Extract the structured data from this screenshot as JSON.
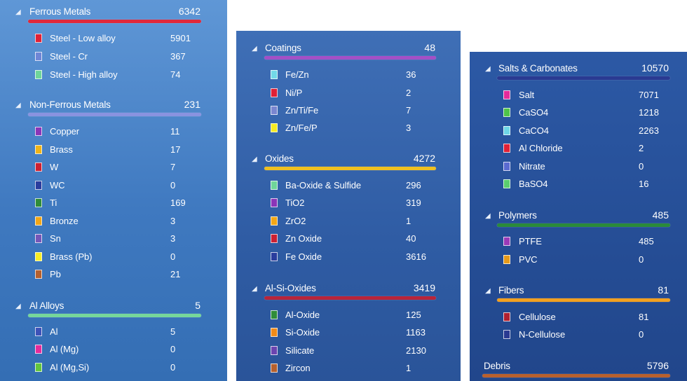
{
  "panels": [
    {
      "groups": [
        {
          "title": "Ferrous Metals",
          "total": "6342",
          "color": "#e0283a",
          "items": [
            {
              "label": "Steel - Low alloy",
              "value": "5901",
              "color": "#e02036"
            },
            {
              "label": "Steel - Cr",
              "value": "367",
              "color": "#6f86d6"
            },
            {
              "label": "Steel - High alloy",
              "value": "74",
              "color": "#6fd59a"
            }
          ]
        },
        {
          "title": "Non-Ferrous Metals",
          "total": "231",
          "color": "#8a93e0",
          "items": [
            {
              "label": "Copper",
              "value": "11",
              "color": "#8a35b8"
            },
            {
              "label": "Brass",
              "value": "17",
              "color": "#f0b418"
            },
            {
              "label": "W",
              "value": "7",
              "color": "#cc1f32"
            },
            {
              "label": "WC",
              "value": "0",
              "color": "#2a3d9e"
            },
            {
              "label": "Ti",
              "value": "169",
              "color": "#2f8c3a"
            },
            {
              "label": "Bronze",
              "value": "3",
              "color": "#f2a617"
            },
            {
              "label": "Sn",
              "value": "3",
              "color": "#7456b8"
            },
            {
              "label": "Brass (Pb)",
              "value": "0",
              "color": "#f8ee24"
            },
            {
              "label": "Pb",
              "value": "21",
              "color": "#b5602e"
            }
          ]
        },
        {
          "title": "Al Alloys",
          "total": "5",
          "color": "#76d69a",
          "items": [
            {
              "label": "Al",
              "value": "5",
              "color": "#3d52b8"
            },
            {
              "label": "Al (Mg)",
              "value": "0",
              "color": "#e52a9b"
            },
            {
              "label": "Al (Mg,Si)",
              "value": "0",
              "color": "#62c63e"
            }
          ]
        }
      ]
    },
    {
      "groups": [
        {
          "title": "Coatings",
          "total": "48",
          "color": "#a44fc6",
          "items": [
            {
              "label": "Fe/Zn",
              "value": "36",
              "color": "#72d8e8"
            },
            {
              "label": "Ni/P",
              "value": "2",
              "color": "#e02036"
            },
            {
              "label": "Zn/Ti/Fe",
              "value": "7",
              "color": "#7a86d0"
            },
            {
              "label": "Zn/Fe/P",
              "value": "3",
              "color": "#f6ea22"
            }
          ]
        },
        {
          "title": "Oxides",
          "total": "4272",
          "color": "#f0c020",
          "items": [
            {
              "label": "Ba-Oxide & Sulfide",
              "value": "296",
              "color": "#6fd59a"
            },
            {
              "label": "TiO2",
              "value": "319",
              "color": "#8a35b8"
            },
            {
              "label": "ZrO2",
              "value": "1",
              "color": "#f2a617"
            },
            {
              "label": "Zn Oxide",
              "value": "40",
              "color": "#cc1f32"
            },
            {
              "label": "Fe Oxide",
              "value": "3616",
              "color": "#2a3d9e"
            }
          ]
        },
        {
          "title": "Al-Si-Oxides",
          "total": "3419",
          "color": "#b8243a",
          "items": [
            {
              "label": "Al-Oxide",
              "value": "125",
              "color": "#2f8c3a"
            },
            {
              "label": "Si-Oxide",
              "value": "1163",
              "color": "#f08a1a"
            },
            {
              "label": "Silicate",
              "value": "2130",
              "color": "#6a44b0"
            },
            {
              "label": "Zircon",
              "value": "1",
              "color": "#b5602e"
            }
          ]
        }
      ]
    },
    {
      "groups": [
        {
          "title": "Salts & Carbonates",
          "total": "10570",
          "color": "#2a3a92",
          "items": [
            {
              "label": "Salt",
              "value": "7071",
              "color": "#e52a9b"
            },
            {
              "label": "CaSO4",
              "value": "1218",
              "color": "#4fc34a"
            },
            {
              "label": "CaCO4",
              "value": "2263",
              "color": "#6ed6e6"
            },
            {
              "label": "Al Chloride",
              "value": "2",
              "color": "#e02036"
            },
            {
              "label": "Nitrate",
              "value": "0",
              "color": "#5a6ad0"
            },
            {
              "label": "BaSO4",
              "value": "16",
              "color": "#5acd6e"
            }
          ]
        },
        {
          "title": "Polymers",
          "total": "485",
          "color": "#2a8a3a",
          "items": [
            {
              "label": "PTFE",
              "value": "485",
              "color": "#9a3ab8"
            },
            {
              "label": "PVC",
              "value": "0",
              "color": "#e69a1a"
            }
          ]
        },
        {
          "title": "Fibers",
          "total": "81",
          "color": "#f2a020",
          "items": [
            {
              "label": "Cellulose",
              "value": "81",
              "color": "#b02030"
            },
            {
              "label": "N-Cellulose",
              "value": "0",
              "color": "#2a3a92"
            }
          ]
        },
        {
          "title": "Debris",
          "total": "5796",
          "color": "#b8602e",
          "items": []
        }
      ]
    }
  ]
}
